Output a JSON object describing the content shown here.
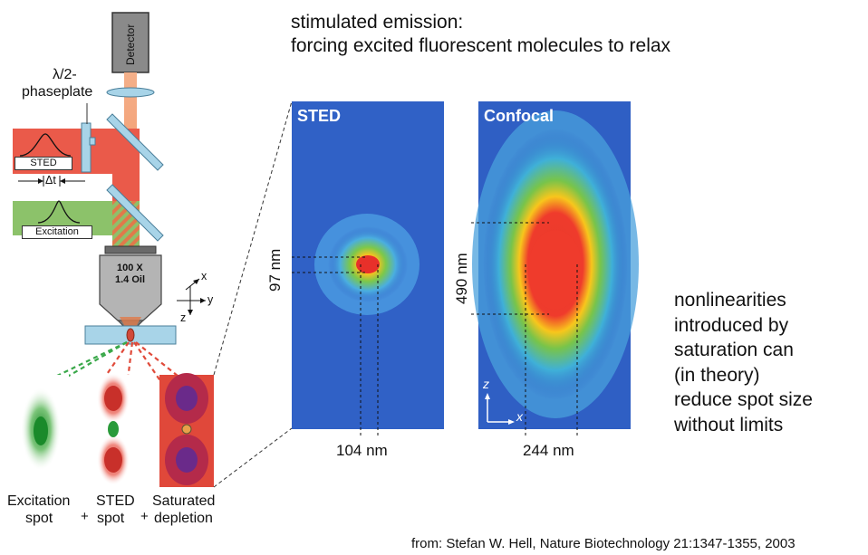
{
  "heading": {
    "line1": "stimulated emission:",
    "line2": "forcing excited fluorescent molecules to relax"
  },
  "side_note": [
    "nonlinearities",
    "introduced by",
    "saturation can",
    "(in theory)",
    "reduce spot size",
    "without limits"
  ],
  "citation": "from: Stefan W. Hell, Nature Biotechnology 21:1347-1355, 2003",
  "setup": {
    "detector": "Detector",
    "phaseplate_line1": "λ/2-",
    "phaseplate_line2": "phaseplate",
    "sted_label": "STED",
    "delta_t": "Δt",
    "excitation_label": "Excitation",
    "objective_line1": "100 X",
    "objective_line2": "1.4 Oil",
    "axis_x": "x",
    "axis_y": "y",
    "axis_z": "z"
  },
  "spots": {
    "excitation_line1": "Excitation",
    "excitation_line2": "spot",
    "sted_line1": "STED",
    "sted_line2": "spot",
    "saturated_line1": "Saturated",
    "saturated_line2": "depletion",
    "plus": "+"
  },
  "panels": {
    "sted": {
      "title": "STED",
      "width_label": "104 nm",
      "height_label": "97 nm"
    },
    "confocal": {
      "title": "Confocal",
      "width_label": "244 nm",
      "height_label": "490 nm",
      "axis_z": "z",
      "axis_x": "x"
    }
  }
}
